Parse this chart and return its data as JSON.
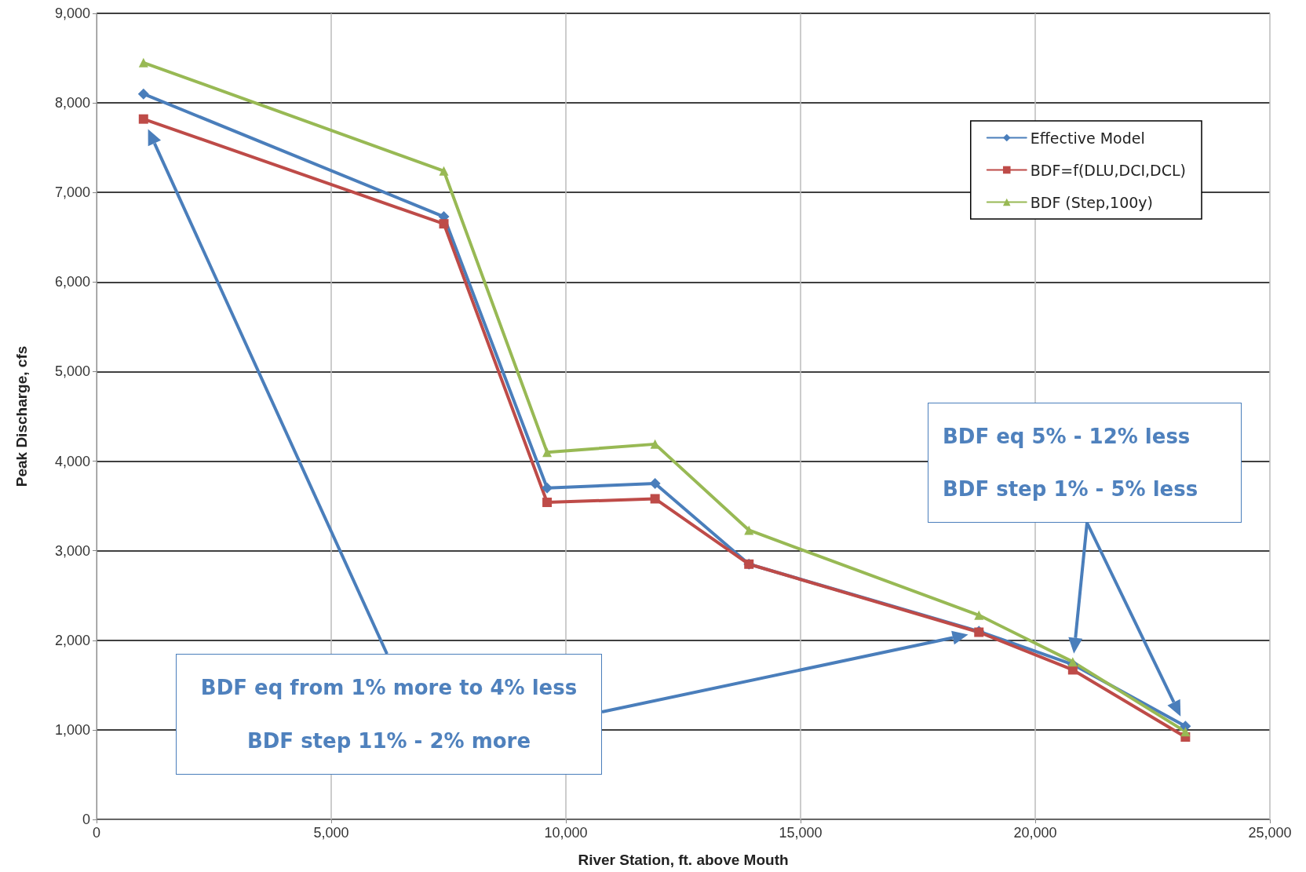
{
  "chart_data": {
    "type": "line",
    "xlabel": "River Station, ft. above Mouth",
    "ylabel": "Peak Discharge, cfs",
    "x": [
      1000,
      7400,
      9600,
      11900,
      13900,
      18800,
      20800,
      23200
    ],
    "series": [
      {
        "name": "Effective Model",
        "color": "#4a7ebb",
        "marker": "diamond",
        "values": [
          8100,
          6730,
          3700,
          3750,
          2850,
          2100,
          1730,
          1040
        ]
      },
      {
        "name": "BDF=f(DLU,DCI,DCL)",
        "color": "#be4b48",
        "marker": "square",
        "values": [
          7820,
          6650,
          3540,
          3580,
          2850,
          2090,
          1670,
          920
        ]
      },
      {
        "name": "BDF (Step,100y)",
        "color": "#98b954",
        "marker": "triangle",
        "values": [
          8450,
          7240,
          4100,
          4190,
          3230,
          2280,
          1760,
          980
        ]
      }
    ],
    "xlim": [
      0,
      25000
    ],
    "xticks": [
      0,
      {
        "value": 5000,
        "label": "5,000"
      },
      {
        "value": 10000,
        "label": "10,000"
      },
      {
        "value": 15000,
        "label": "15,000"
      },
      {
        "value": 20000,
        "label": "20,000"
      },
      {
        "value": 25000,
        "label": "25,000"
      }
    ],
    "ylim": [
      0,
      9000
    ],
    "yticks": [
      0,
      {
        "value": 1000,
        "label": "1,000"
      },
      {
        "value": 2000,
        "label": "2,000"
      },
      {
        "value": 3000,
        "label": "3,000"
      },
      {
        "value": 4000,
        "label": "4,000"
      },
      {
        "value": 5000,
        "label": "5,000"
      },
      {
        "value": 6000,
        "label": "6,000"
      },
      {
        "value": 7000,
        "label": "7,000"
      },
      {
        "value": 8000,
        "label": "8,000"
      },
      {
        "value": 9000,
        "label": "9,000"
      }
    ],
    "grid": true,
    "legend": "top right",
    "line_style": "solid",
    "annotations": [
      "BDF eq from 1% more to 4% less",
      "BDF step 11% - 2% more",
      "BDF eq  5% - 12% less",
      "BDF step  1% - 5% less"
    ]
  }
}
